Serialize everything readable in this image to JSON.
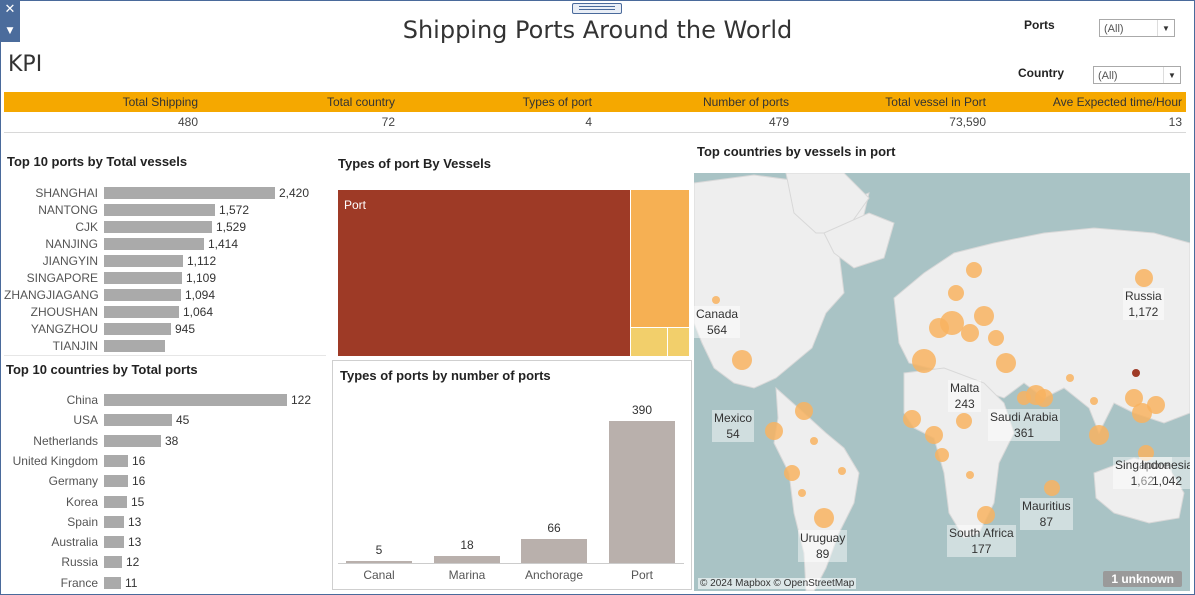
{
  "title": "Shipping Ports Around the World",
  "kpi_label": "KPI",
  "filters": {
    "ports": {
      "label": "Ports",
      "value": "(All)"
    },
    "country": {
      "label": "Country",
      "value": "(All)"
    }
  },
  "kpis": [
    {
      "label": "Total Shipping",
      "value": "480"
    },
    {
      "label": "Total country",
      "value": "72"
    },
    {
      "label": "Types of port",
      "value": "4"
    },
    {
      "label": "Number of ports",
      "value": "479"
    },
    {
      "label": "Total vessel in Port",
      "value": "73,590"
    },
    {
      "label": "Ave Expected time/Hour",
      "value": "13"
    }
  ],
  "colors": {
    "accent": "#f5a800",
    "bar": "#aaaaaa",
    "port": "#9e3a26",
    "anchorage": "#f6b053",
    "marina": "#f2cf6b",
    "col_bar": "#b9b0ac",
    "sea": "#a9c3c5",
    "land": "#eeeeee",
    "bubble": "#f8b360"
  },
  "top_ports": {
    "title": "Top 10 ports by Total vessels",
    "items": [
      {
        "name": "SHANGHAI",
        "value": 2420,
        "label": "2,420"
      },
      {
        "name": "NANTONG",
        "value": 1572,
        "label": "1,572"
      },
      {
        "name": "CJK",
        "value": 1529,
        "label": "1,529"
      },
      {
        "name": "NANJING",
        "value": 1414,
        "label": "1,414"
      },
      {
        "name": "JIANGYIN",
        "value": 1112,
        "label": "1,112"
      },
      {
        "name": "SINGAPORE",
        "value": 1109,
        "label": "1,109"
      },
      {
        "name": "ZHANGJIAGANG",
        "value": 1094,
        "label": "1,094"
      },
      {
        "name": "ZHOUSHAN",
        "value": 1064,
        "label": "1,064"
      },
      {
        "name": "YANGZHOU",
        "value": 945,
        "label": "945"
      },
      {
        "name": "TIANJIN",
        "value": 870,
        "label": ""
      }
    ]
  },
  "top_countries": {
    "title": "Top 10 countries by Total ports",
    "items": [
      {
        "name": "China",
        "value": 122,
        "label": "122"
      },
      {
        "name": "USA",
        "value": 45,
        "label": "45"
      },
      {
        "name": "Netherlands",
        "value": 38,
        "label": "38"
      },
      {
        "name": "United Kingdom",
        "value": 16,
        "label": "16"
      },
      {
        "name": "Germany",
        "value": 16,
        "label": "16"
      },
      {
        "name": "Korea",
        "value": 15,
        "label": "15"
      },
      {
        "name": "Spain",
        "value": 13,
        "label": "13"
      },
      {
        "name": "Australia",
        "value": 13,
        "label": "13"
      },
      {
        "name": "Russia",
        "value": 12,
        "label": "12"
      },
      {
        "name": "France",
        "value": 11,
        "label": "11"
      }
    ]
  },
  "treemap": {
    "title": "Types of port By Vessels",
    "port_label": "Port"
  },
  "port_types": {
    "title": "Types of ports by number of ports",
    "items": [
      {
        "name": "Canal",
        "value": 5,
        "label": "5"
      },
      {
        "name": "Marina",
        "value": 18,
        "label": "18"
      },
      {
        "name": "Anchorage",
        "value": 66,
        "label": "66"
      },
      {
        "name": "Port",
        "value": 390,
        "label": "390"
      }
    ]
  },
  "map": {
    "title": "Top countries by vessels in port",
    "labels": [
      {
        "name": "Canada",
        "value": "564"
      },
      {
        "name": "Russia",
        "value": "1,172"
      },
      {
        "name": "Malta",
        "value": "243"
      },
      {
        "name": "Mexico",
        "value": "54"
      },
      {
        "name": "Saudi Arabia",
        "value": "361"
      },
      {
        "name": "Singapore",
        "value": "1,62"
      },
      {
        "name": "Indonesia",
        "value": "1,042"
      },
      {
        "name": "Mauritius",
        "value": "87"
      },
      {
        "name": "South Africa",
        "value": "177"
      },
      {
        "name": "Uruguay",
        "value": "89"
      }
    ],
    "credit": "© 2024 Mapbox © OpenStreetMap",
    "unknown": "1 unknown"
  }
}
